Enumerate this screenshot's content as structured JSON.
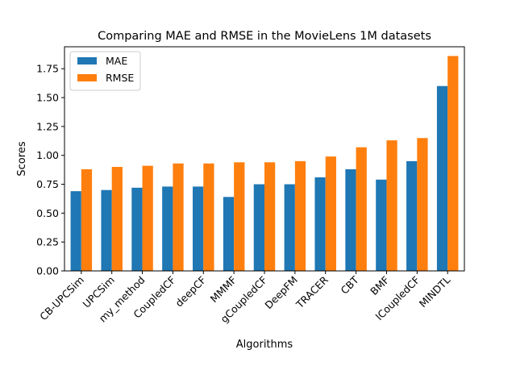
{
  "chart_data": {
    "type": "bar",
    "title": "Comparing MAE and RMSE in the MovieLens 1M datasets",
    "xlabel": "Algorithms",
    "ylabel": "Scores",
    "ylim": [
      0,
      1.94
    ],
    "yticks": [
      "0.00",
      "0.25",
      "0.50",
      "0.75",
      "1.00",
      "1.25",
      "1.50",
      "1.75"
    ],
    "categories": [
      "CB-UPCSim",
      "UPCSim",
      "my_method",
      "CoupledCF",
      "deepCF",
      "MMMF",
      "gCoupledCF",
      "DeepFM",
      "TRACER",
      "CBT",
      "BMF",
      "lCoupledCF",
      "MINDTL"
    ],
    "series": [
      {
        "name": "MAE",
        "color": "#1f77b4",
        "values": [
          0.69,
          0.7,
          0.72,
          0.73,
          0.73,
          0.64,
          0.75,
          0.75,
          0.81,
          0.88,
          0.79,
          0.95,
          1.6
        ]
      },
      {
        "name": "RMSE",
        "color": "#ff7f0e",
        "values": [
          0.88,
          0.9,
          0.91,
          0.93,
          0.93,
          0.94,
          0.94,
          0.95,
          0.99,
          1.07,
          1.13,
          1.15,
          1.86
        ]
      }
    ],
    "legend_position": "top-left",
    "grid": false
  }
}
